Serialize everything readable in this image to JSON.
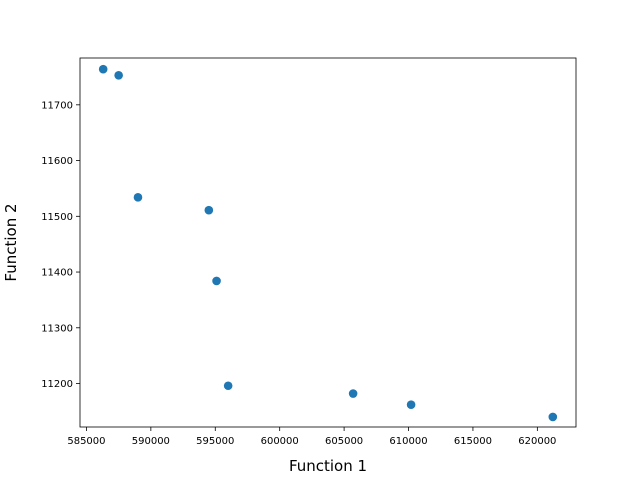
{
  "chart_data": {
    "type": "scatter",
    "xlabel": "Function 1",
    "ylabel": "Function 2",
    "xlim": [
      584500,
      623000
    ],
    "ylim": [
      11122,
      11784
    ],
    "xticks": [
      585000,
      590000,
      595000,
      600000,
      605000,
      610000,
      615000,
      620000
    ],
    "yticks": [
      11200,
      11300,
      11400,
      11500,
      11600,
      11700
    ],
    "grid": false,
    "marker_color": "#1f77b4",
    "series": [
      {
        "x": [
          586300,
          587500,
          589000,
          594500,
          595100,
          596000,
          605700,
          610200,
          621200
        ],
        "y": [
          11764,
          11753,
          11534,
          11511,
          11384,
          11196,
          11182,
          11162,
          11140
        ]
      }
    ]
  }
}
